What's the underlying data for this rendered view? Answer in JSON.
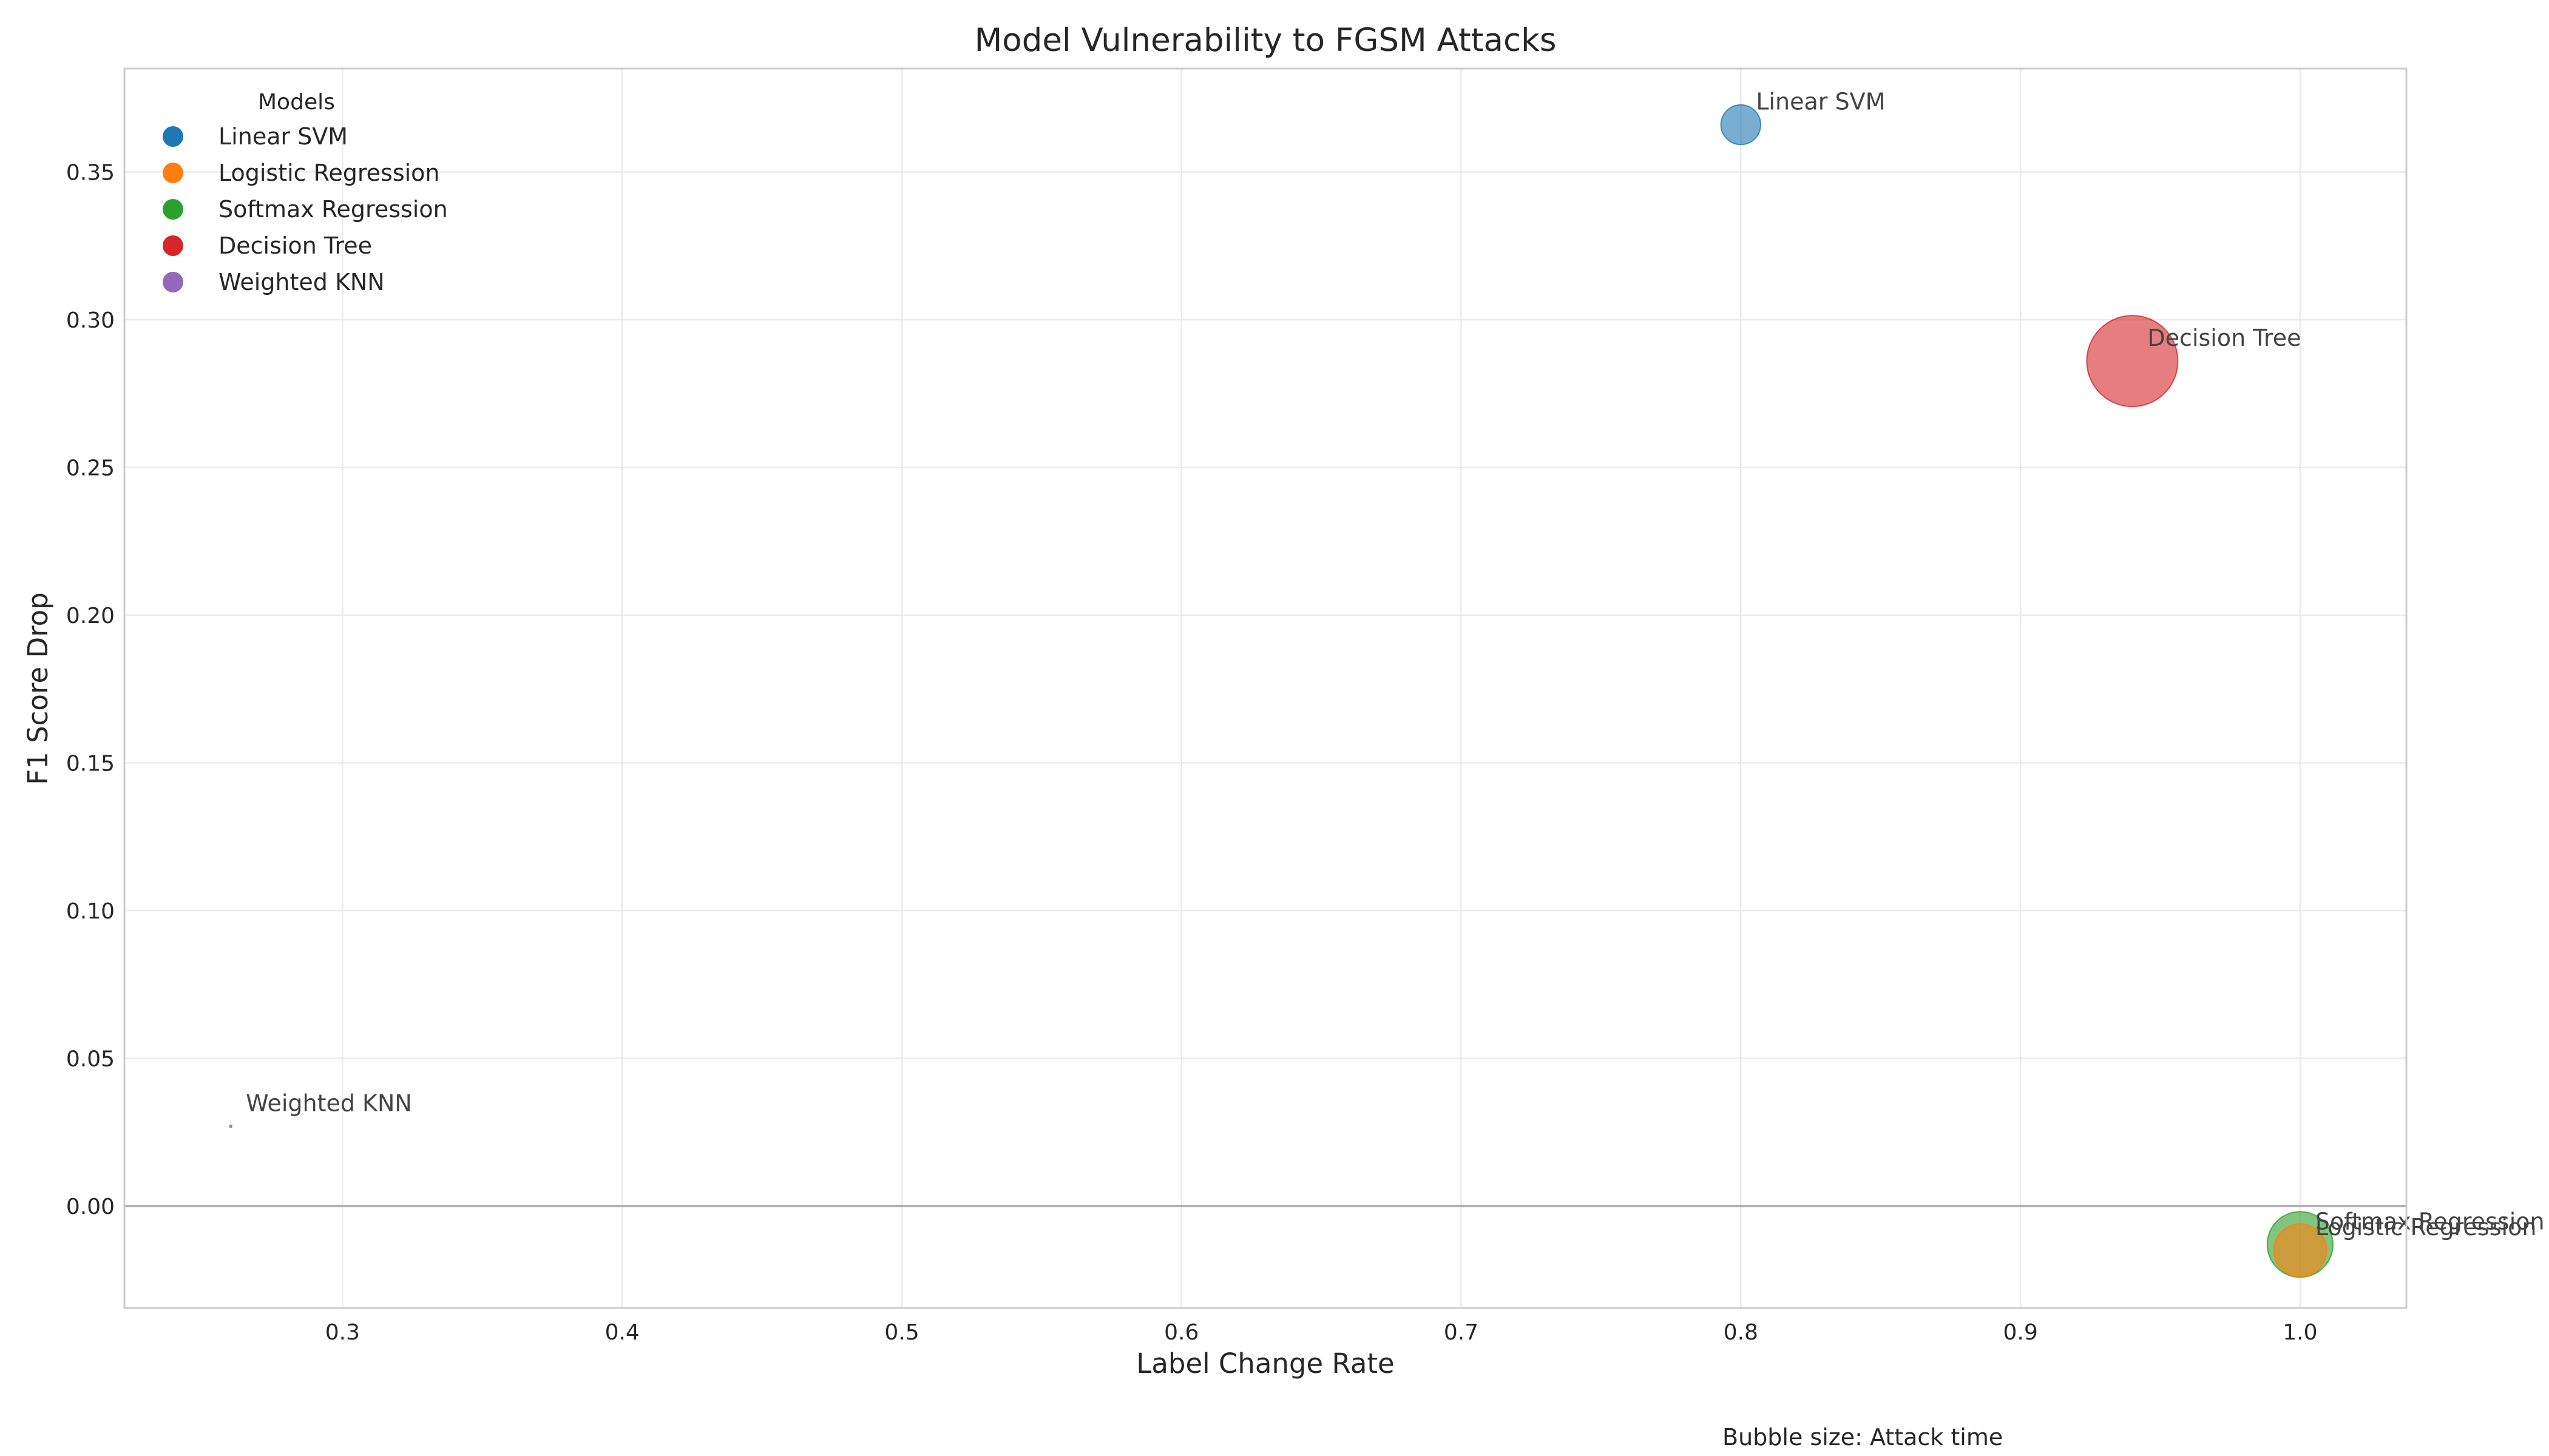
{
  "chart_data": {
    "type": "scatter",
    "title": "Model Vulnerability to FGSM Attacks",
    "xlabel": "Label Change Rate",
    "ylabel": "F1 Score Drop",
    "xlim": [
      0.222,
      1.038
    ],
    "ylim": [
      -0.0345,
      0.385
    ],
    "xticks": [
      0.3,
      0.4,
      0.5,
      0.6,
      0.7,
      0.8,
      0.9,
      1.0
    ],
    "xtick_labels": [
      "0.3",
      "0.4",
      "0.5",
      "0.6",
      "0.7",
      "0.8",
      "0.9",
      "1.0"
    ],
    "yticks": [
      0.0,
      0.05,
      0.1,
      0.15,
      0.2,
      0.25,
      0.3,
      0.35
    ],
    "ytick_labels": [
      "0.00",
      "0.05",
      "0.10",
      "0.15",
      "0.20",
      "0.25",
      "0.30",
      "0.35"
    ],
    "grid": true,
    "zero_line": true,
    "legend": {
      "title": "Models",
      "placement": "top-left"
    },
    "size_note": "Bubble size: Attack time",
    "series": [
      {
        "name": "Linear SVM",
        "color": "#1f77b4",
        "x": 0.8,
        "y": 0.366,
        "attack_time_rel": 0.19
      },
      {
        "name": "Logistic Regression",
        "color": "#ff7f0e",
        "x": 1.0,
        "y": -0.015,
        "attack_time_rel": 0.34
      },
      {
        "name": "Softmax Regression",
        "color": "#2ca02c",
        "x": 1.0,
        "y": -0.013,
        "attack_time_rel": 0.52
      },
      {
        "name": "Decision Tree",
        "color": "#d62728",
        "x": 0.94,
        "y": 0.286,
        "attack_time_rel": 1.0
      },
      {
        "name": "Weighted KNN",
        "color": "#9467bd",
        "x": 0.26,
        "y": 0.027,
        "attack_time_rel": 0.0005
      }
    ]
  }
}
